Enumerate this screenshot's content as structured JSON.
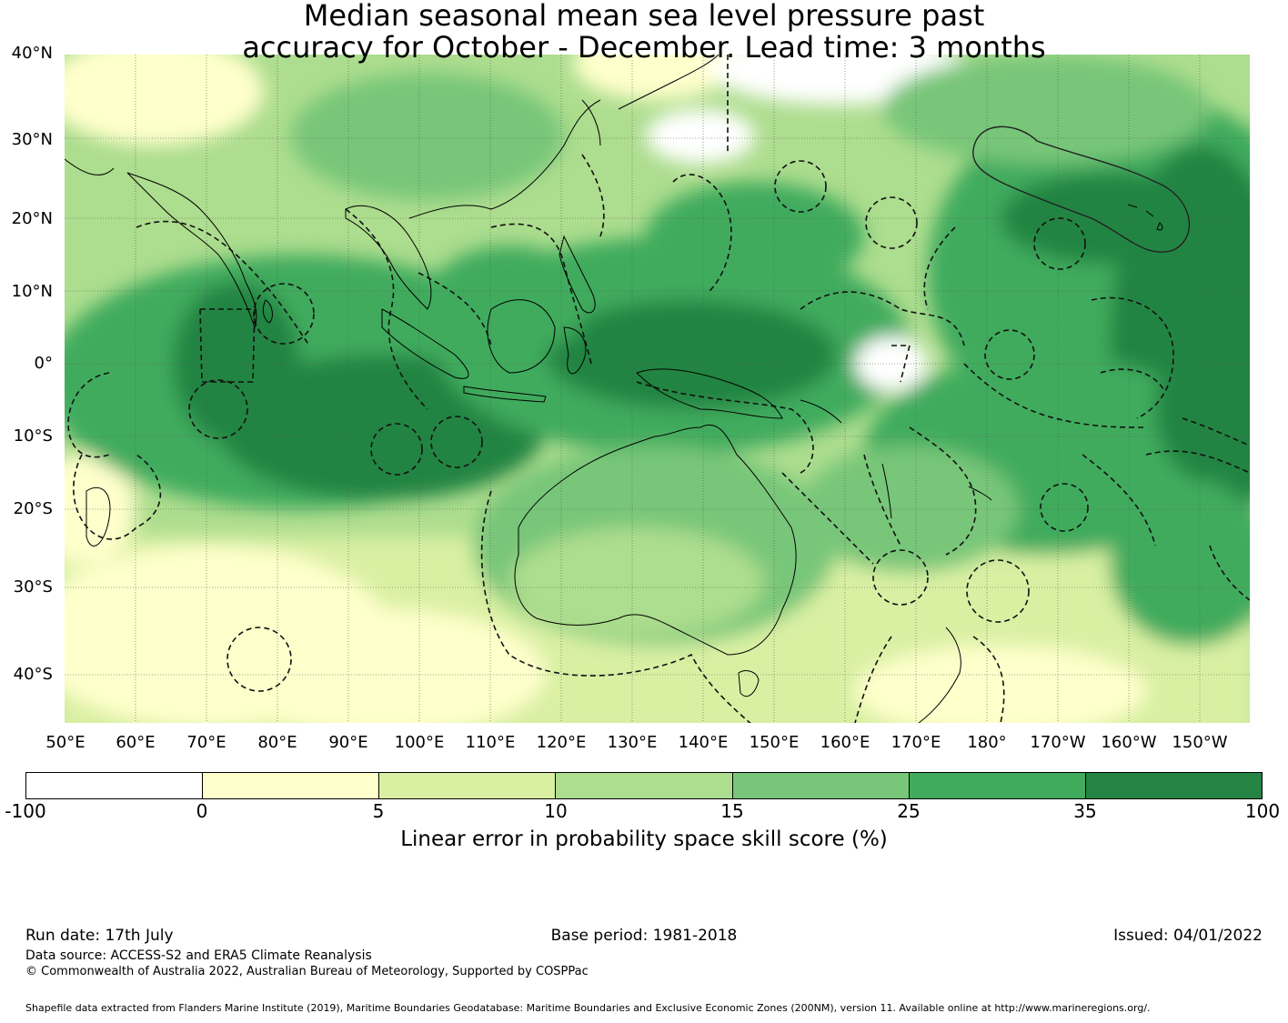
{
  "title_line1": "Median seasonal mean sea level pressure past",
  "title_line2": "accuracy for October - December. Lead time: 3 months",
  "lat_labels": [
    "40°N",
    "30°N",
    "20°N",
    "10°N",
    "0°",
    "10°S",
    "20°S",
    "30°S",
    "40°S"
  ],
  "lon_labels": [
    "50°E",
    "60°E",
    "70°E",
    "80°E",
    "90°E",
    "100°E",
    "110°E",
    "120°E",
    "130°E",
    "140°E",
    "150°E",
    "160°E",
    "170°E",
    "180°",
    "170°W",
    "160°W",
    "150°W"
  ],
  "colorbar": {
    "ticks": [
      "-100",
      "0",
      "5",
      "10",
      "15",
      "25",
      "35",
      "100"
    ],
    "colors": [
      "#ffffff",
      "#ffffcc",
      "#d9f0a3",
      "#addd8e",
      "#78c679",
      "#41ab5d",
      "#238443"
    ],
    "label": "Linear error in probability space skill score (%)"
  },
  "footer": {
    "run_date": "Run date: 17th July",
    "base_period": "Base period: 1981-2018",
    "issued": "Issued: 04/01/2022",
    "data_source": "Data source: ACCESS-S2 and ERA5 Climate Reanalysis",
    "copyright": "© Commonwealth of Australia 2022, Australian Bureau of Meteorology, Supported by COSPPac",
    "shapefile": "Shapefile data extracted from Flanders Marine Institute (2019), Maritime Boundaries Geodatabase: Maritime Boundaries and Exclusive Economic Zones (200NM), version 11. Available online at http://www.marineregions.org/."
  }
}
